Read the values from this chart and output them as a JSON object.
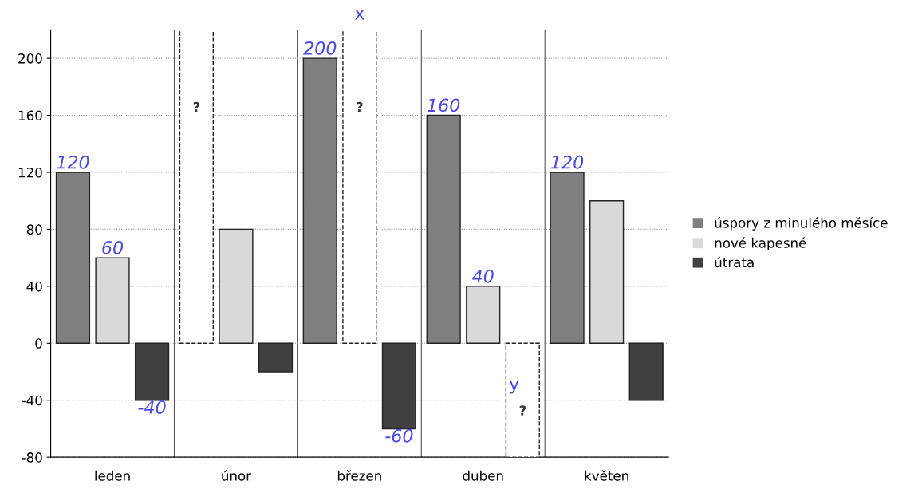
{
  "chart_data": {
    "type": "bar",
    "categories": [
      "leden",
      "únor",
      "březen",
      "duben",
      "květen"
    ],
    "series": [
      {
        "name": "úspory z minulého měsíce",
        "color": "#7f7f7f",
        "values": [
          120,
          null,
          200,
          160,
          120
        ],
        "value_labels": [
          "120",
          null,
          "200",
          "160",
          "120"
        ]
      },
      {
        "name": "nové kapesné",
        "color": "#d9d9d9",
        "values": [
          60,
          80,
          null,
          40,
          100
        ],
        "value_labels": [
          "60",
          null,
          null,
          "40",
          null
        ]
      },
      {
        "name": "útrata",
        "color": "#404040",
        "values": [
          -40,
          -20,
          -60,
          null,
          -40
        ],
        "value_labels": [
          "-40",
          null,
          "-60",
          null,
          null
        ]
      },
      {
        "color": "#ffffff",
        "line_style": "dashed",
        "values": [
          null,
          220,
          null,
          null,
          null
        ],
        "value_labels": [
          null,
          "?",
          null,
          null,
          null
        ]
      },
      {
        "color": "#ffffff",
        "line_style": "dashed",
        "values": [
          null,
          null,
          220,
          null,
          null
        ],
        "value_labels": [
          null,
          null,
          "?",
          null,
          null
        ]
      },
      {
        "color": "#ffffff",
        "line_style": "dashed",
        "values": [
          null,
          null,
          null,
          -80,
          null
        ],
        "value_labels": [
          null,
          null,
          null,
          "?",
          null
        ]
      }
    ],
    "ylim": [
      -80,
      220
    ],
    "yticks": [
      -80,
      -40,
      0,
      40,
      80,
      120,
      160,
      200
    ],
    "grid": true,
    "legend": "right",
    "annotations": [
      {
        "text": "x",
        "x": "březen",
        "y": 220
      },
      {
        "text": "y",
        "x": "duben",
        "y": 0
      }
    ]
  }
}
